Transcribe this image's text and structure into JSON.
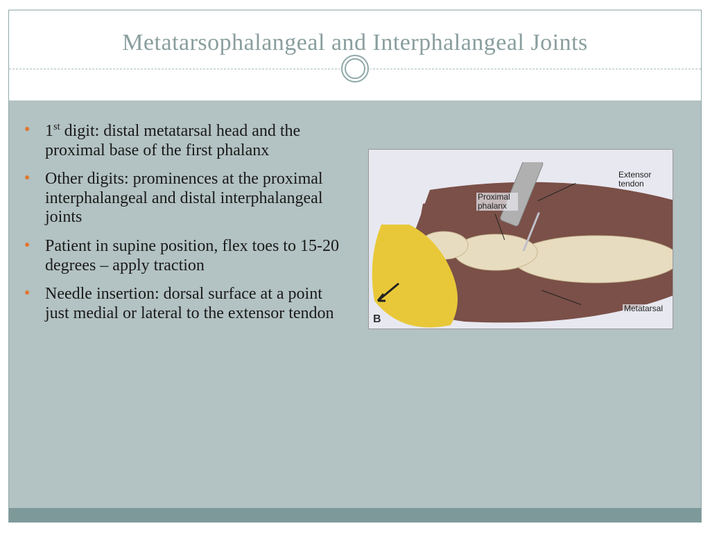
{
  "title": {
    "text": "Metatarsophalangeal and Interphalangeal Joints",
    "color": "#8a9e9e",
    "fontsize": 34
  },
  "bullets": {
    "marker_color": "#e07830",
    "text_color": "#1a1a1a",
    "fontsize": 24,
    "items": [
      {
        "prefix": "1",
        "sup": "st",
        "rest": " digit: distal metatarsal head and the proximal base of the first phalanx"
      },
      {
        "text": "Other digits: prominences at the proximal interphalangeal and distal interphalangeal joints"
      },
      {
        "text": "Patient in supine position, flex toes to 15-20 degrees – apply traction"
      },
      {
        "text": "Needle insertion: dorsal surface at a point just medial or lateral to the extensor tendon"
      }
    ]
  },
  "figure": {
    "panel_letter": "B",
    "background": "#e8e8f0",
    "labels": {
      "extensor": "Extensor tendon",
      "proximal": "Proximal phalanx",
      "metatarsal": "Metatarsal"
    },
    "colors": {
      "muscle": "#7a5048",
      "bone": "#e8dcc0",
      "glove": "#e8c838",
      "needle": "#b0b0b0"
    }
  },
  "theme": {
    "header_border": "#a8bcbc",
    "slide_border": "#8fa8a8",
    "body_bg": "#b3c2c2",
    "footer_bar": "#7d9999",
    "ring_color": "#8fa8a8"
  }
}
